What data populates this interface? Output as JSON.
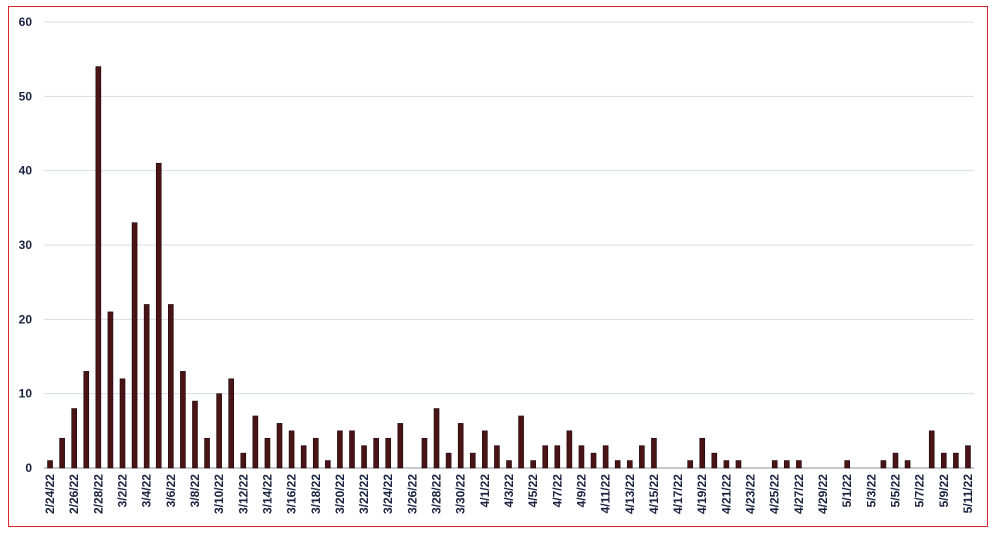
{
  "chart_data": {
    "type": "bar",
    "title": "",
    "xlabel": "",
    "ylabel": "",
    "ylim": [
      0,
      60
    ],
    "yticks": [
      0,
      10,
      20,
      30,
      40,
      50,
      60
    ],
    "grid": true,
    "bar_color": "#4a1416",
    "categories": [
      "2/24/22",
      "2/25/22",
      "2/26/22",
      "2/27/22",
      "2/28/22",
      "3/1/22",
      "3/2/22",
      "3/3/22",
      "3/4/22",
      "3/5/22",
      "3/6/22",
      "3/7/22",
      "3/8/22",
      "3/9/22",
      "3/10/22",
      "3/11/22",
      "3/12/22",
      "3/13/22",
      "3/14/22",
      "3/15/22",
      "3/16/22",
      "3/17/22",
      "3/18/22",
      "3/19/22",
      "3/20/22",
      "3/21/22",
      "3/22/22",
      "3/23/22",
      "3/24/22",
      "3/25/22",
      "3/26/22",
      "3/27/22",
      "3/28/22",
      "3/29/22",
      "3/30/22",
      "3/31/22",
      "4/1/22",
      "4/2/22",
      "4/3/22",
      "4/4/22",
      "4/5/22",
      "4/6/22",
      "4/7/22",
      "4/8/22",
      "4/9/22",
      "4/10/22",
      "4/11/22",
      "4/12/22",
      "4/13/22",
      "4/14/22",
      "4/15/22",
      "4/16/22",
      "4/17/22",
      "4/18/22",
      "4/19/22",
      "4/20/22",
      "4/21/22",
      "4/22/22",
      "4/23/22",
      "4/24/22",
      "4/25/22",
      "4/26/22",
      "4/27/22",
      "4/28/22",
      "4/29/22",
      "4/30/22",
      "5/1/22",
      "5/2/22",
      "5/3/22",
      "5/4/22",
      "5/5/22",
      "5/6/22",
      "5/7/22",
      "5/8/22",
      "5/9/22",
      "5/10/22",
      "5/11/22"
    ],
    "xtick_labels": [
      "2/24/22",
      "2/26/22",
      "2/28/22",
      "3/2/22",
      "3/4/22",
      "3/6/22",
      "3/8/22",
      "3/10/22",
      "3/12/22",
      "3/14/22",
      "3/16/22",
      "3/18/22",
      "3/20/22",
      "3/22/22",
      "3/24/22",
      "3/26/22",
      "3/28/22",
      "3/30/22",
      "4/1/22",
      "4/3/22",
      "4/5/22",
      "4/7/22",
      "4/9/22",
      "4/11/22",
      "4/13/22",
      "4/15/22",
      "4/17/22",
      "4/19/22",
      "4/21/22",
      "4/23/22",
      "4/25/22",
      "4/27/22",
      "4/29/22",
      "5/1/22",
      "5/3/22",
      "5/5/22",
      "5/7/22",
      "5/9/22",
      "5/11/22"
    ],
    "values": [
      1,
      4,
      8,
      13,
      54,
      21,
      12,
      33,
      22,
      41,
      22,
      13,
      9,
      4,
      10,
      12,
      2,
      7,
      4,
      6,
      5,
      3,
      4,
      1,
      5,
      5,
      3,
      4,
      4,
      6,
      0,
      4,
      8,
      2,
      6,
      2,
      5,
      3,
      1,
      7,
      1,
      3,
      3,
      5,
      3,
      2,
      3,
      1,
      1,
      3,
      4,
      0,
      0,
      1,
      4,
      2,
      1,
      1,
      0,
      0,
      1,
      1,
      1,
      0,
      0,
      0,
      1,
      0,
      0,
      1,
      2,
      1,
      0,
      5,
      2,
      2,
      3
    ]
  }
}
